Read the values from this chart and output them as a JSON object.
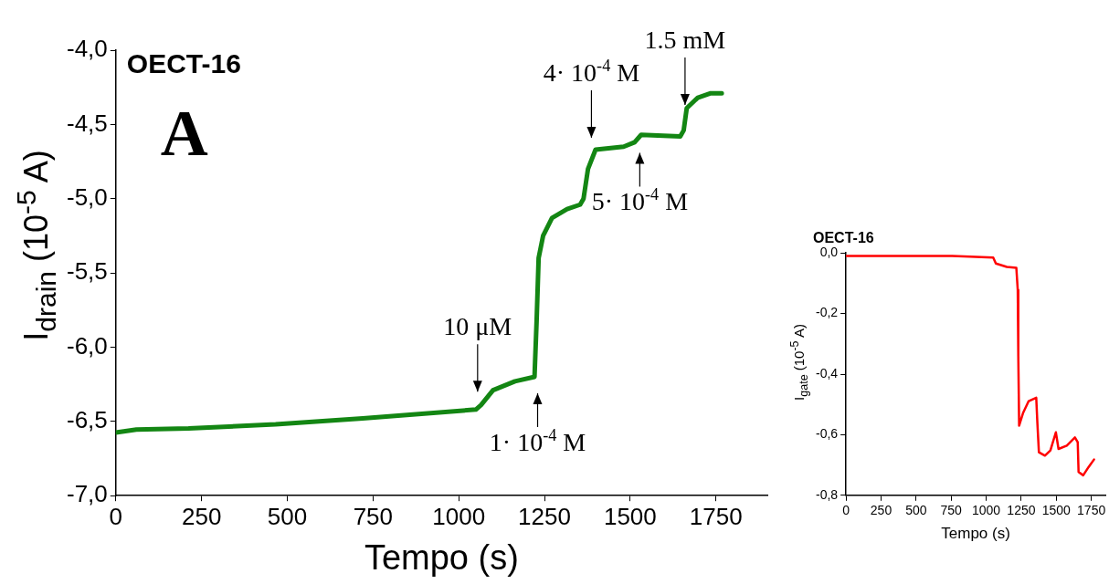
{
  "chart_data": [
    {
      "type": "line",
      "title": "OECT-16",
      "xlabel": "Tempo (s)",
      "ylabel": "I$_{drain}$ (10$^{-5}$ A)",
      "xlim": [
        0,
        1900
      ],
      "xticks": [
        0,
        250,
        500,
        750,
        1000,
        1250,
        1500,
        1750
      ],
      "ylim": [
        -7,
        -4
      ],
      "yticks": [
        {
          "value": -7,
          "label": "-7,0"
        },
        {
          "value": -6.5,
          "label": "-6,5"
        },
        {
          "value": -6,
          "label": "-6,0"
        },
        {
          "value": -5.5,
          "label": "-5,5"
        },
        {
          "value": -5,
          "label": "-5,0"
        },
        {
          "value": -4.5,
          "label": "-4,5"
        },
        {
          "value": -4,
          "label": "-4,0"
        }
      ],
      "grid": false,
      "series": [
        {
          "color": "#138613",
          "x": [
            0,
            60,
            212,
            466,
            720,
            1050,
            1065,
            1100,
            1164,
            1221,
            1227,
            1233,
            1246,
            1272,
            1316,
            1354,
            1364,
            1377,
            1399,
            1481,
            1513,
            1532,
            1646,
            1656,
            1665,
            1697,
            1735,
            1767
          ],
          "values": [
            -6.575,
            -6.555,
            -6.547,
            -6.52,
            -6.48,
            -6.42,
            -6.39,
            -6.29,
            -6.23,
            -6.2,
            -5.83,
            -5.4,
            -5.25,
            -5.13,
            -5.07,
            -5.04,
            -5,
            -4.8,
            -4.67,
            -4.65,
            -4.62,
            -4.57,
            -4.58,
            -4.54,
            -4.39,
            -4.32,
            -4.29,
            -4.29
          ]
        }
      ],
      "annotations": [
        "A",
        {
          "text": "10 μM",
          "x": 1055,
          "y": -6.41
        },
        {
          "text": "1· 10$^{-4}$ M",
          "x": 1230,
          "y": -6.2
        },
        {
          "text": "4· 10$^{-4}$ M",
          "x": 1387,
          "y": -4.7
        },
        {
          "text": "5· 10$^{-4}$ M",
          "x": 1528,
          "y": -4.58
        },
        {
          "text": "1.5 mM",
          "x": 1660,
          "y": -4.48
        }
      ]
    },
    {
      "type": "line",
      "title": "OECT-16",
      "xlabel": "Tempo (s)",
      "ylabel": "I$_{gate}$ (10$^{-5}$ A)",
      "xlim": [
        0,
        1850
      ],
      "xticks": [
        0,
        250,
        500,
        750,
        1000,
        1250,
        1500,
        1750
      ],
      "ylim": [
        -0.8,
        0
      ],
      "yticks": [
        {
          "value": -0.8,
          "label": "-0,8"
        },
        {
          "value": -0.6,
          "label": "-0,6"
        },
        {
          "value": -0.4,
          "label": "-0,4"
        },
        {
          "value": -0.2,
          "label": "-0,2"
        },
        {
          "value": 0,
          "label": "0,0"
        }
      ],
      "grid": false,
      "series": [
        {
          "color": "#ff0000",
          "x": [
            0,
            758,
            1050,
            1069,
            1147,
            1215,
            1225,
            1229,
            1235,
            1264,
            1303,
            1357,
            1365,
            1376,
            1419,
            1458,
            1497,
            1516,
            1575,
            1633,
            1653,
            1659,
            1692,
            1730,
            1769
          ],
          "values": [
            -0.01,
            -0.01,
            -0.015,
            -0.035,
            -0.046,
            -0.049,
            -0.122,
            -0.34,
            -0.57,
            -0.527,
            -0.489,
            -0.478,
            -0.56,
            -0.658,
            -0.669,
            -0.652,
            -0.592,
            -0.647,
            -0.636,
            -0.609,
            -0.625,
            -0.723,
            -0.734,
            -0.707,
            -0.682
          ]
        }
      ]
    }
  ]
}
